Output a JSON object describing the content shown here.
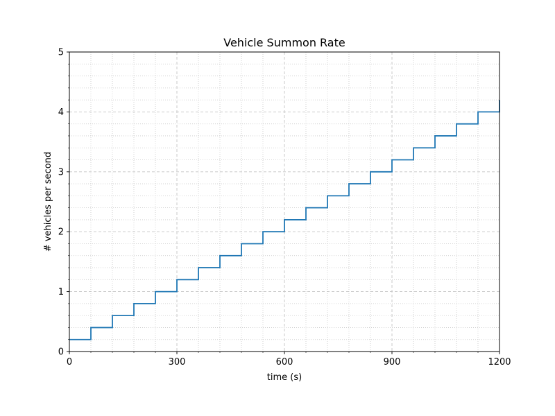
{
  "chart_data": {
    "type": "line",
    "step": "post",
    "title": "Vehicle Summon Rate",
    "xlabel": "time (s)",
    "ylabel": "# vehicles per second",
    "xlim": [
      0,
      1200
    ],
    "ylim": [
      0,
      5
    ],
    "x_ticks": [
      0,
      300,
      600,
      900,
      1200
    ],
    "y_ticks": [
      0,
      1,
      2,
      3,
      4,
      5
    ],
    "x_minor_step": 60,
    "y_minor_step": 0.2,
    "grid": {
      "major": "dashed",
      "minor": "dotted"
    },
    "color": "#1f77b4",
    "series": [
      {
        "x": [
          0,
          60,
          120,
          180,
          240,
          300,
          360,
          420,
          480,
          540,
          600,
          660,
          720,
          780,
          840,
          900,
          960,
          1020,
          1080,
          1140,
          1200
        ],
        "values": [
          0.2,
          0.4,
          0.6,
          0.8,
          1.0,
          1.2,
          1.4,
          1.6,
          1.8,
          2.0,
          2.2,
          2.4,
          2.6,
          2.8,
          3.0,
          3.2,
          3.4,
          3.6,
          3.8,
          4.0,
          4.2
        ]
      }
    ]
  }
}
